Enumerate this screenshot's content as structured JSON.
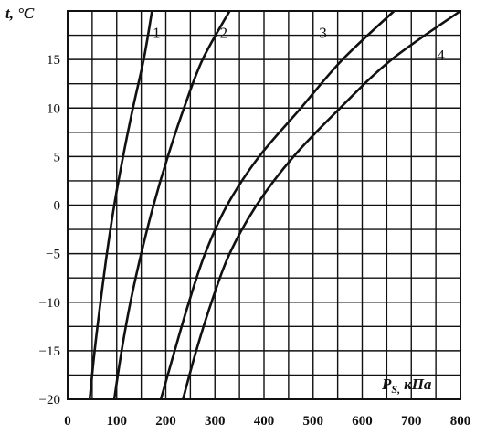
{
  "chart_data": {
    "type": "line",
    "title": "",
    "xlabel": "P",
    "xlabel_sub": "S,",
    "xlabel_unit": "кПа",
    "ylabel": "t, °C",
    "xlim": [
      0,
      800
    ],
    "ylim": [
      -20,
      20
    ],
    "x_ticks": [
      "0",
      "100",
      "200",
      "300",
      "400",
      "500",
      "600",
      "700",
      "800"
    ],
    "y_ticks": [
      "15",
      "10",
      "5",
      "0",
      "-5",
      "-10",
      "-15",
      "-20"
    ],
    "grid": true,
    "series": [
      {
        "label": "1",
        "points": [
          [
            45,
            -20
          ],
          [
            55,
            -15
          ],
          [
            67,
            -10
          ],
          [
            80,
            -5
          ],
          [
            95,
            0
          ],
          [
            113,
            5
          ],
          [
            133,
            10
          ],
          [
            155,
            15
          ],
          [
            172,
            20
          ]
        ]
      },
      {
        "label": "2",
        "points": [
          [
            95,
            -20
          ],
          [
            110,
            -15
          ],
          [
            128,
            -10
          ],
          [
            150,
            -5
          ],
          [
            175,
            0
          ],
          [
            204,
            5
          ],
          [
            237,
            10
          ],
          [
            275,
            15
          ],
          [
            330,
            20
          ]
        ]
      },
      {
        "label": "3",
        "points": [
          [
            190,
            -20
          ],
          [
            218,
            -15
          ],
          [
            247,
            -10
          ],
          [
            280,
            -5
          ],
          [
            325,
            0
          ],
          [
            390,
            5
          ],
          [
            475,
            10
          ],
          [
            560,
            15
          ],
          [
            665,
            20
          ]
        ]
      },
      {
        "label": "4",
        "points": [
          [
            235,
            -20
          ],
          [
            262,
            -15
          ],
          [
            293,
            -10
          ],
          [
            330,
            -5
          ],
          [
            385,
            0
          ],
          [
            460,
            5
          ],
          [
            555,
            10
          ],
          [
            660,
            15
          ],
          [
            800,
            20
          ]
        ]
      }
    ]
  }
}
